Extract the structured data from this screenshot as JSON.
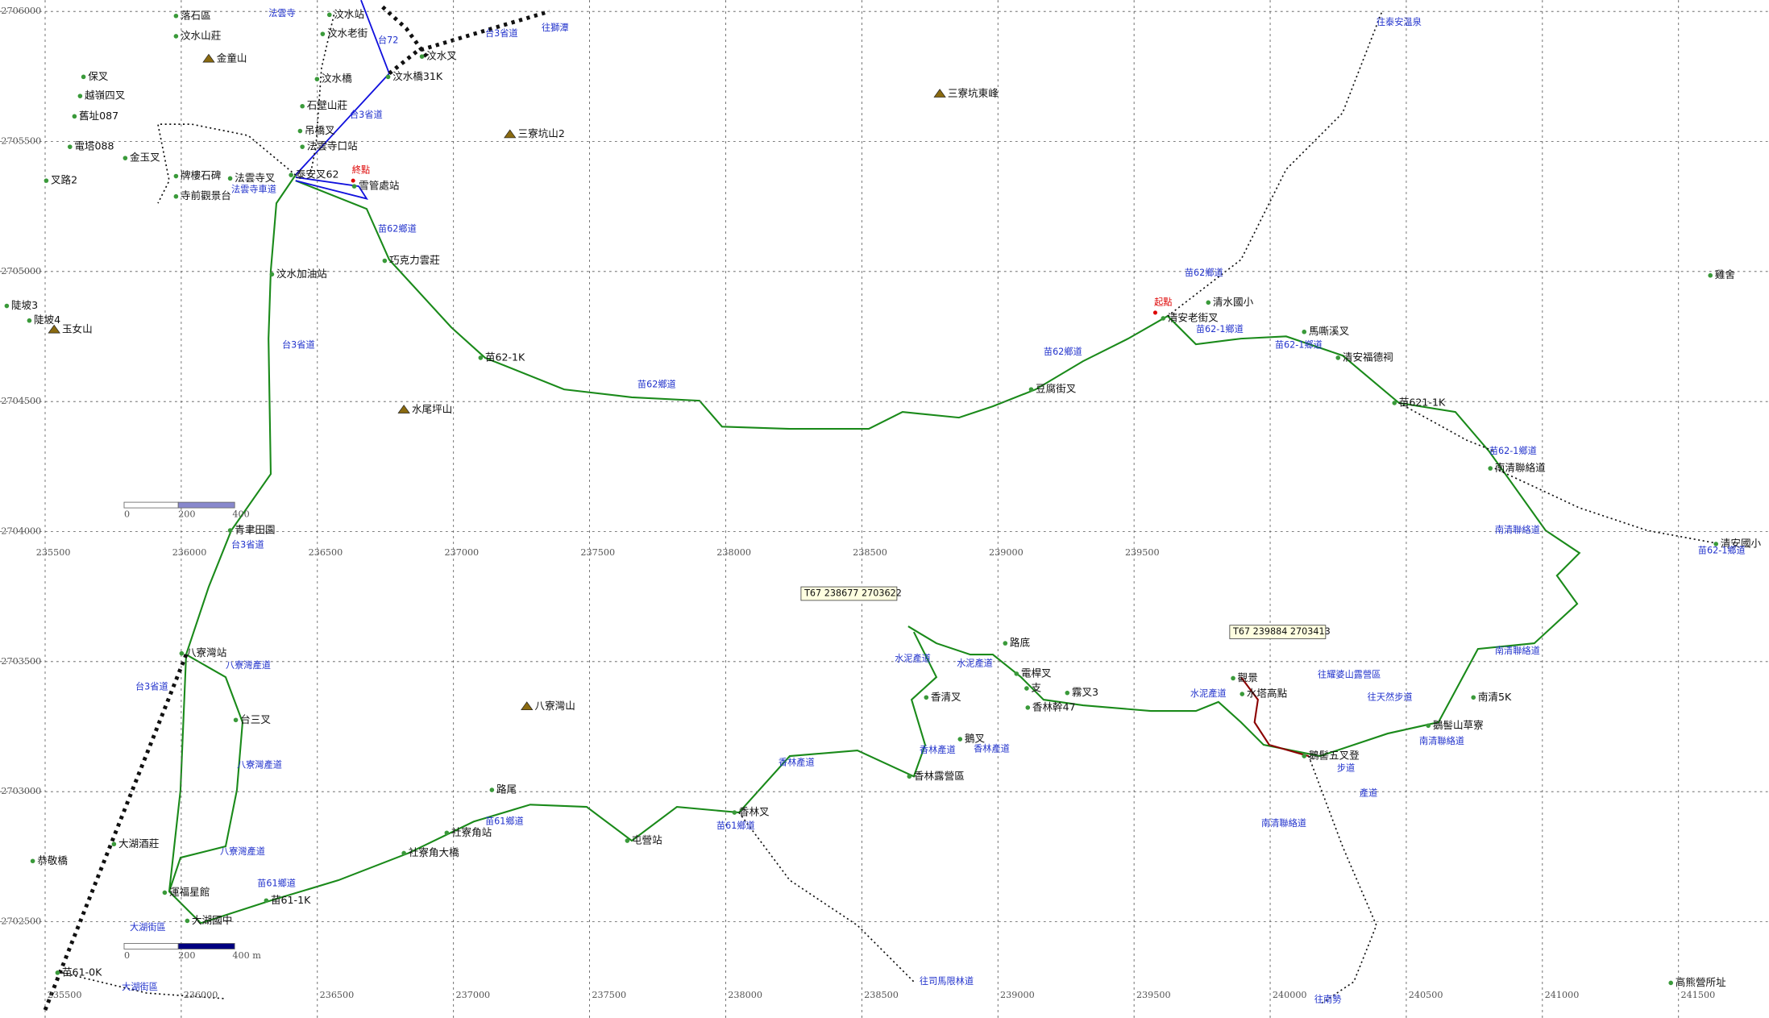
{
  "grid": {
    "xticks": [
      235500,
      236000,
      236500,
      237000,
      237500,
      238000,
      238500,
      239000,
      239500,
      240000,
      240500,
      241000,
      241500
    ],
    "yticks": [
      2706000,
      2705500,
      2705000,
      2704500,
      2704000,
      2703500,
      2703000,
      2702500
    ]
  },
  "points": [
    "落石區",
    "汶水山莊",
    "保叉",
    "越嶺四叉",
    "舊址087",
    "電塔088",
    "金玉叉",
    "叉路2",
    "牌樓石碑",
    "法雲寺叉",
    "寺前觀景台",
    "汶水站",
    "汶水老街",
    "汶水橋",
    "汶水橋31K",
    "汶水叉",
    "石壁山莊",
    "吊橋叉",
    "法雲寺口站",
    "泰安叉62",
    "雪管處站",
    "巧克力雲莊",
    "汶水加油站",
    "陡坡3",
    "陡坡4",
    "苗62-1K",
    "青聿田園",
    "八寮灣站",
    "台三叉",
    "恭敬橋",
    "大湖酒莊",
    "運福星館",
    "大湖國中",
    "苗61-1K",
    "苗61-0K",
    "社寮角大橋",
    "社寮角站",
    "路尾",
    "屯營站",
    "香林叉",
    "香林露營區",
    "豆腐街叉",
    "清安老街叉",
    "清水國小",
    "馬嘶溪叉",
    "清安福德祠",
    "苗621-1K",
    "南清聯絡道",
    "清安國小",
    "雞舍",
    "南清5K",
    "鵝髻山草寮",
    "鵝髻五叉登",
    "水塔高點",
    "觀景",
    "高熊營所址",
    "路底",
    "香清叉",
    "鵝叉",
    "霧叉3",
    "香林幹47",
    "電桿叉",
    "支"
  ],
  "peaks": [
    "金童山",
    "三寮坑山2",
    "三寮坑東峰",
    "玉女山",
    "水尾坪山",
    "八寮灣山"
  ],
  "road_labels": [
    "台3省道",
    "台72",
    "往獅潭",
    "台3省道",
    "苗62鄉道",
    "台3省道",
    "台3省道",
    "台3省道",
    "八寮灣產道",
    "八寮灣產道",
    "八寮灣產道",
    "苗61鄉道",
    "苗61鄉道",
    "苗61鄉道",
    "香林產道",
    "苗62鄉道",
    "苗62鄉道",
    "苗62-1鄉道",
    "苗62-1鄉道",
    "苗62鄉道",
    "往泰安溫泉",
    "苗62-1鄉道",
    "南清聯絡道",
    "苗62-1鄉道",
    "南清聯絡道",
    "南清聯絡道",
    "往司馬限林道",
    "往南勢",
    "大湖街區",
    "大湖街區",
    "法雲寺車道",
    "水泥產道",
    "水泥產道",
    "香林產道",
    "香林產道",
    "往耀婆山露營區",
    "往天然步道",
    "產道",
    "步道",
    "南清聯絡道",
    "水泥產道",
    "法雲寺"
  ],
  "red_labels": [
    "終點",
    "起點"
  ],
  "flags": [
    "T67  238677  2703622",
    "T67  239884  2703413"
  ],
  "scale_bars": [
    {
      "labels": [
        "0",
        "200",
        "400"
      ]
    },
    {
      "labels": [
        "0",
        "200",
        "400 m"
      ]
    }
  ]
}
